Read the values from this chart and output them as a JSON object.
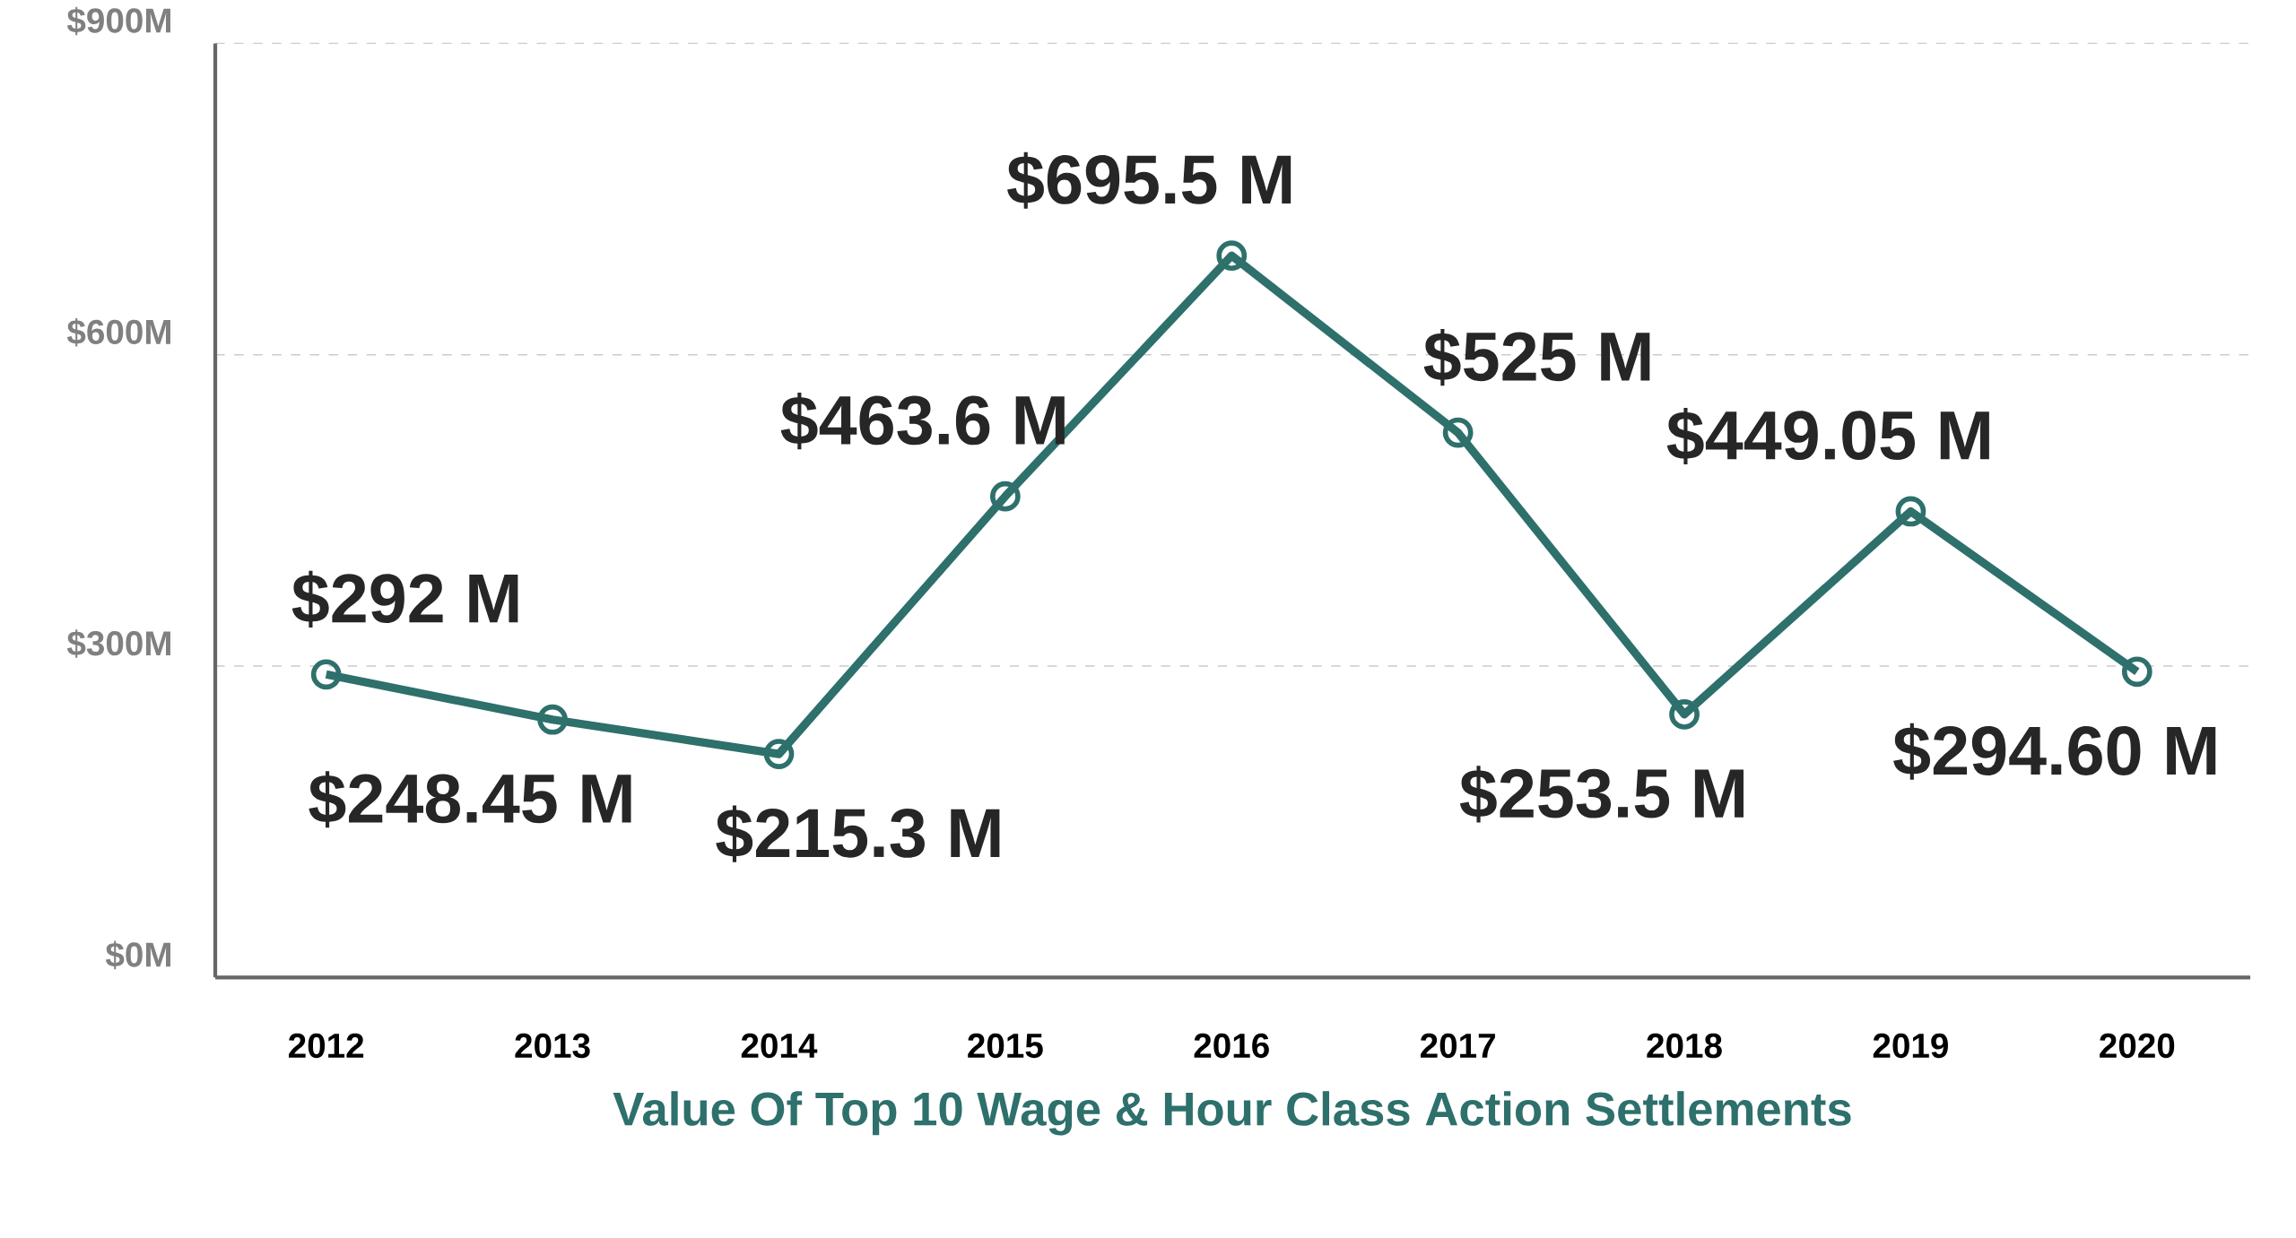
{
  "chart_data": {
    "type": "line",
    "title": "Value Of Top 10 Wage & Hour Class Action Settlements",
    "categories": [
      "2012",
      "2013",
      "2014",
      "2015",
      "2016",
      "2017",
      "2018",
      "2019",
      "2020"
    ],
    "values": [
      292,
      248.45,
      215.3,
      463.6,
      695.5,
      525,
      253.5,
      449.05,
      294.6
    ],
    "value_labels": [
      "$292 M",
      "$248.45 M",
      "$215.3 M",
      "$463.6 M",
      "$695.5 M",
      "$525 M",
      "$253.5 M",
      "$449.05 M",
      "$294.60 M"
    ],
    "color": "#2e706b",
    "ylim": [
      0,
      900
    ],
    "yticks": [
      {
        "value": 0,
        "label": "$0M"
      },
      {
        "value": 300,
        "label": "$300M"
      },
      {
        "value": 600,
        "label": "$600M"
      },
      {
        "value": 900,
        "label": "$900M"
      }
    ],
    "grid": "y",
    "marker": "circle",
    "line_style": "solid"
  }
}
